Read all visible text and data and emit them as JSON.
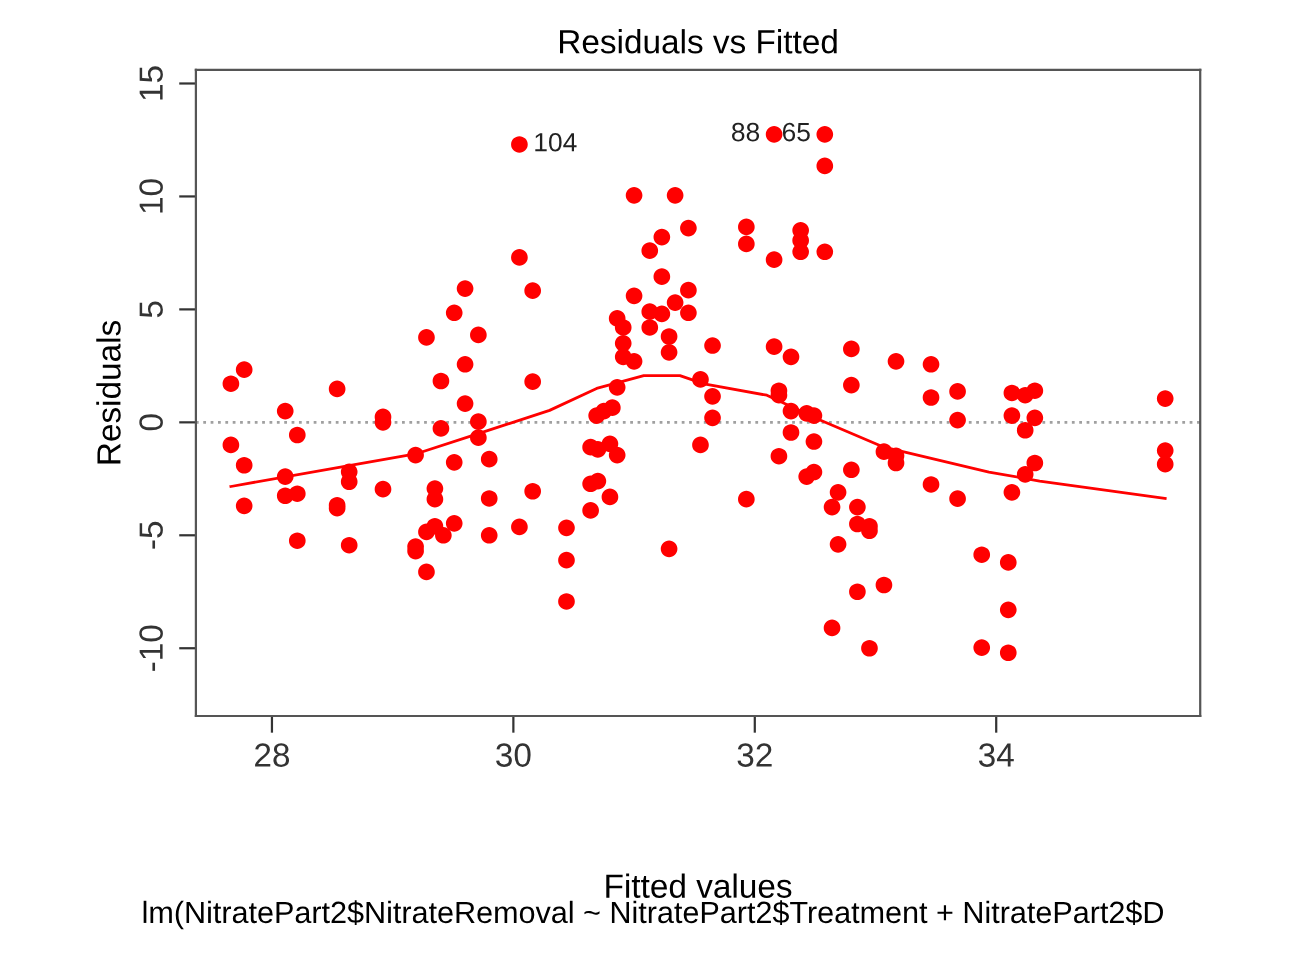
{
  "chart_data": {
    "type": "scatter",
    "title": "Residuals vs Fitted",
    "xlabel": "Fitted values",
    "ylabel": "Residuals",
    "xlim": [
      27.37,
      35.69
    ],
    "xticks": [
      28,
      30,
      32,
      34
    ],
    "ylim": [
      -13.0,
      15.6
    ],
    "yticks": [
      -10,
      -5,
      0,
      5,
      10,
      15
    ],
    "grid": false,
    "marker": "circle",
    "ref_lines": [
      {
        "axis": "y",
        "value": 0,
        "color": "#a0a0a0",
        "line_style": "dotted"
      }
    ],
    "annotations": [
      {
        "text": "104",
        "x": 30.05,
        "y": 12.3
      },
      {
        "text": "88",
        "x": 32.16,
        "y": 12.75
      },
      {
        "text": "65",
        "x": 32.58,
        "y": 12.75
      },
      "lm(NitratePart2$NitrateRemoval ~ NitratePart2$Treatment + NitratePart2$D"
    ],
    "series": [
      {
        "color": "#ff0000",
        "x": [
          27.66,
          27.77,
          27.66,
          27.77,
          27.77,
          28.11,
          28.21,
          28.11,
          28.11,
          28.21,
          28.21,
          28.54,
          28.64,
          28.64,
          28.54,
          28.54,
          28.64,
          28.92,
          28.92,
          28.92,
          29.19,
          29.28,
          29.4,
          29.51,
          29.6,
          29.71,
          29.6,
          29.6,
          29.71,
          29.4,
          29.71,
          29.51,
          29.8,
          29.35,
          29.35,
          29.8,
          29.51,
          29.35,
          29.28,
          29.42,
          29.19,
          29.19,
          29.28,
          29.8,
          30.05,
          30.05,
          30.16,
          30.16,
          30.16,
          30.05,
          30.44,
          30.44,
          30.44,
          30.64,
          30.7,
          30.8,
          30.86,
          30.69,
          30.75,
          30.82,
          30.86,
          30.64,
          30.7,
          30.64,
          30.8,
          30.86,
          30.91,
          30.91,
          30.91,
          31.0,
          31.0,
          31.0,
          31.13,
          31.23,
          31.23,
          31.13,
          31.13,
          31.23,
          31.29,
          31.29,
          31.34,
          31.45,
          31.45,
          31.45,
          31.34,
          31.29,
          31.55,
          31.65,
          31.65,
          31.65,
          31.55,
          31.93,
          31.93,
          31.93,
          32.16,
          32.16,
          32.16,
          32.2,
          32.2,
          32.2,
          32.3,
          32.3,
          32.3,
          32.38,
          32.38,
          32.38,
          32.43,
          32.43,
          32.49,
          32.49,
          32.49,
          32.58,
          32.58,
          32.58,
          32.64,
          32.64,
          32.69,
          32.69,
          32.8,
          32.8,
          32.8,
          32.85,
          32.85,
          32.95,
          32.95,
          32.85,
          32.95,
          33.07,
          33.07,
          33.17,
          33.17,
          33.17,
          33.46,
          33.46,
          33.46,
          33.68,
          33.68,
          33.68,
          33.88,
          33.88,
          34.1,
          34.1,
          34.1,
          34.13,
          34.13,
          34.13,
          34.24,
          34.24,
          34.24,
          34.32,
          34.32,
          34.32,
          35.4,
          35.4,
          35.4
        ],
        "values": [
          1.71,
          2.33,
          -1.0,
          -1.9,
          -3.7,
          0.5,
          -0.56,
          -2.4,
          -3.25,
          -3.16,
          -5.24,
          1.48,
          -2.19,
          -2.63,
          -3.67,
          -3.8,
          -5.44,
          0.24,
          0.0,
          -2.96,
          -1.45,
          3.76,
          1.83,
          4.85,
          5.92,
          3.87,
          2.57,
          0.83,
          0.03,
          -0.27,
          -0.68,
          -1.77,
          -1.63,
          -2.93,
          -3.4,
          -3.37,
          -4.47,
          -4.6,
          -4.85,
          -5.0,
          -5.5,
          -5.7,
          -6.62,
          -5.0,
          12.3,
          7.3,
          5.83,
          1.8,
          -3.05,
          -4.63,
          -4.67,
          -6.1,
          -7.93,
          -1.1,
          -1.2,
          -0.95,
          -1.45,
          0.3,
          0.5,
          0.65,
          1.55,
          -2.72,
          -2.6,
          -3.9,
          -3.3,
          4.6,
          4.2,
          3.5,
          2.9,
          2.7,
          5.6,
          10.05,
          7.6,
          8.2,
          6.45,
          4.9,
          4.2,
          4.8,
          3.8,
          3.1,
          5.3,
          5.85,
          4.85,
          8.6,
          10.05,
          -5.6,
          1.9,
          3.4,
          1.15,
          0.2,
          -1.0,
          8.65,
          7.9,
          -3.4,
          12.75,
          7.2,
          3.35,
          1.4,
          1.2,
          -1.5,
          2.9,
          0.5,
          -0.45,
          8.5,
          8.05,
          7.55,
          0.4,
          -2.4,
          0.3,
          -0.85,
          -2.2,
          12.75,
          11.35,
          7.55,
          -3.75,
          -9.1,
          -3.1,
          -5.4,
          3.25,
          1.65,
          -2.1,
          -3.75,
          -4.5,
          -4.6,
          -4.8,
          -7.5,
          -10.0,
          -7.2,
          -1.3,
          2.7,
          -1.48,
          -1.8,
          2.57,
          1.1,
          -2.75,
          1.37,
          0.1,
          -3.38,
          -5.86,
          -9.97,
          -6.2,
          -8.3,
          -10.2,
          1.3,
          0.3,
          -3.1,
          1.2,
          -0.35,
          -2.3,
          1.4,
          0.2,
          -1.8,
          1.05,
          -1.25,
          -1.85
        ]
      },
      {
        "type": "line",
        "color": "#ff0000",
        "marker": "none",
        "line_style": "solid",
        "x": [
          27.66,
          28.65,
          29.19,
          29.71,
          30.3,
          30.69,
          31.08,
          31.38,
          31.58,
          32.1,
          32.54,
          33.07,
          33.94,
          34.36,
          35.4
        ],
        "values": [
          -2.84,
          -1.9,
          -1.4,
          -0.5,
          0.53,
          1.5,
          2.07,
          2.07,
          1.7,
          1.2,
          0.1,
          -1.1,
          -2.2,
          -2.6,
          -3.37
        ]
      }
    ]
  }
}
